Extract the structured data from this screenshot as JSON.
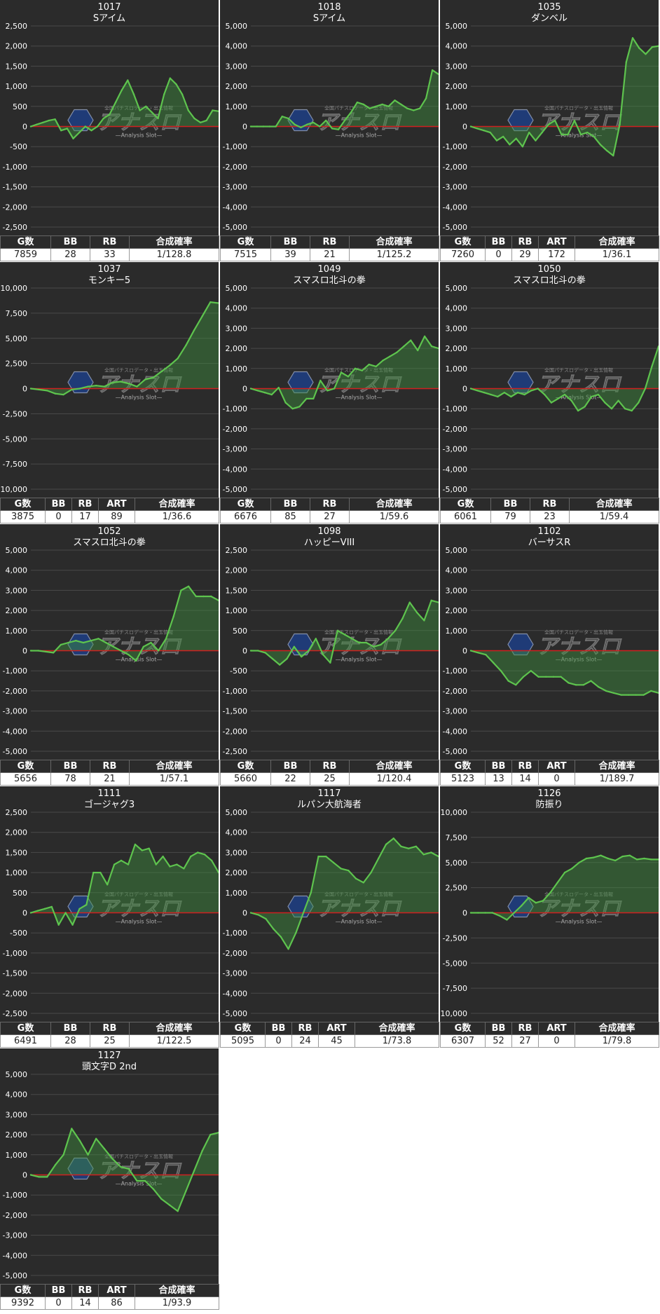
{
  "watermark": {
    "brand": "アナスロ",
    "tagline": "—Analysis Slot—",
    "caption": "全国パチスロデータ・出玉情報"
  },
  "colors": {
    "panel_bg": "#2b2b2b",
    "grid": "#4a4a4a",
    "zero_line": "#d02020",
    "series_line": "#5ec44e",
    "series_fill": "#3f8d3f"
  },
  "chart_data": [
    {
      "type": "area",
      "machine": "1017",
      "title": "Sアイム",
      "ylim": [
        -2500,
        2500
      ],
      "yticks": [
        2500,
        2000,
        1500,
        1000,
        500,
        0,
        -500,
        -1000,
        -1500,
        -2000,
        -2500
      ],
      "grid": true,
      "values": [
        0,
        50,
        100,
        150,
        180,
        -100,
        -50,
        -300,
        -150,
        0,
        -100,
        0,
        200,
        300,
        600,
        900,
        1150,
        800,
        400,
        500,
        350,
        200,
        800,
        1200,
        1050,
        800,
        400,
        200,
        100,
        150,
        400,
        380
      ],
      "stats": {
        "columns": [
          "G数",
          "BB",
          "RB",
          "合成確率"
        ],
        "values": [
          "7859",
          "28",
          "33",
          "1/128.8"
        ]
      }
    },
    {
      "type": "area",
      "machine": "1018",
      "title": "Sアイム",
      "ylim": [
        -5000,
        5000
      ],
      "yticks": [
        5000,
        4000,
        3000,
        2000,
        1000,
        0,
        -1000,
        -2000,
        -3000,
        -4000,
        -5000
      ],
      "grid": true,
      "values": [
        0,
        0,
        0,
        0,
        0,
        500,
        400,
        100,
        -50,
        100,
        200,
        0,
        300,
        -100,
        -150,
        300,
        700,
        1200,
        1100,
        900,
        1000,
        1100,
        1000,
        1300,
        1100,
        900,
        800,
        900,
        1400,
        2800,
        2600
      ],
      "stats": {
        "columns": [
          "G数",
          "BB",
          "RB",
          "合成確率"
        ],
        "values": [
          "7515",
          "39",
          "21",
          "1/125.2"
        ]
      }
    },
    {
      "type": "area",
      "machine": "1035",
      "title": "ダンベル",
      "ylim": [
        -5000,
        5000
      ],
      "yticks": [
        5000,
        4000,
        3000,
        2000,
        1000,
        0,
        -1000,
        -2000,
        -3000,
        -4000,
        -5000
      ],
      "grid": true,
      "values": [
        0,
        -100,
        -200,
        -300,
        -700,
        -500,
        -900,
        -600,
        -1000,
        -300,
        -700,
        -300,
        100,
        300,
        -400,
        -400,
        300,
        -400,
        -300,
        -500,
        -900,
        -1200,
        -1450,
        100,
        3200,
        4400,
        3900,
        3600,
        3950,
        4000
      ],
      "stats": {
        "columns": [
          "G数",
          "BB",
          "RB",
          "ART",
          "合成確率"
        ],
        "values": [
          "7260",
          "0",
          "29",
          "172",
          "1/36.1"
        ]
      }
    },
    {
      "type": "area",
      "machine": "1037",
      "title": "モンキー5",
      "ylim": [
        -10000,
        10000
      ],
      "yticks": [
        10000,
        7500,
        5000,
        2500,
        0,
        -2500,
        -5000,
        -7500,
        -10000
      ],
      "grid": true,
      "values": [
        0,
        -100,
        -200,
        -500,
        -600,
        -100,
        0,
        200,
        300,
        200,
        600,
        700,
        500,
        200,
        900,
        1100,
        1700,
        2300,
        3000,
        4300,
        5800,
        7200,
        8600,
        8500
      ],
      "stats": {
        "columns": [
          "G数",
          "BB",
          "RB",
          "ART",
          "合成確率"
        ],
        "values": [
          "3875",
          "0",
          "17",
          "89",
          "1/36.6"
        ]
      }
    },
    {
      "type": "area",
      "machine": "1049",
      "title": "スマスロ北斗の拳",
      "ylim": [
        -5000,
        5000
      ],
      "yticks": [
        5000,
        4000,
        3000,
        2000,
        1000,
        0,
        -1000,
        -2000,
        -3000,
        -4000,
        -5000
      ],
      "grid": true,
      "values": [
        0,
        -100,
        -200,
        -300,
        50,
        -700,
        -1000,
        -900,
        -500,
        -500,
        400,
        -100,
        0,
        800,
        600,
        1000,
        900,
        1200,
        1100,
        1400,
        1600,
        1800,
        2100,
        2400,
        1900,
        2600,
        2100,
        2000
      ],
      "stats": {
        "columns": [
          "G数",
          "BB",
          "RB",
          "合成確率"
        ],
        "values": [
          "6676",
          "85",
          "27",
          "1/59.6"
        ]
      }
    },
    {
      "type": "area",
      "machine": "1050",
      "title": "スマスロ北斗の拳",
      "ylim": [
        -5000,
        5000
      ],
      "yticks": [
        5000,
        4000,
        3000,
        2000,
        1000,
        0,
        -1000,
        -2000,
        -3000,
        -4000,
        -5000
      ],
      "grid": true,
      "values": [
        0,
        -100,
        -200,
        -300,
        -400,
        -200,
        -400,
        -200,
        -300,
        -100,
        0,
        -300,
        -700,
        -500,
        -300,
        -600,
        -1100,
        -900,
        -400,
        -300,
        -700,
        -1000,
        -600,
        -1000,
        -1100,
        -700,
        0,
        1100,
        2100
      ],
      "stats": {
        "columns": [
          "G数",
          "BB",
          "RB",
          "合成確率"
        ],
        "values": [
          "6061",
          "79",
          "23",
          "1/59.4"
        ]
      }
    },
    {
      "type": "area",
      "machine": "1052",
      "title": "スマスロ北斗の拳",
      "ylim": [
        -5000,
        5000
      ],
      "yticks": [
        5000,
        4000,
        3000,
        2000,
        1000,
        0,
        -1000,
        -2000,
        -3000,
        -4000,
        -5000
      ],
      "grid": true,
      "values": [
        0,
        0,
        -50,
        -100,
        300,
        400,
        500,
        400,
        500,
        600,
        400,
        200,
        0,
        -200,
        -500,
        200,
        400,
        0,
        600,
        1700,
        3000,
        3200,
        2700,
        2700,
        2700,
        2500
      ],
      "stats": {
        "columns": [
          "G数",
          "BB",
          "RB",
          "合成確率"
        ],
        "values": [
          "5656",
          "78",
          "21",
          "1/57.1"
        ]
      }
    },
    {
      "type": "area",
      "machine": "1098",
      "title": "ハッピーVIII",
      "ylim": [
        -2500,
        2500
      ],
      "yticks": [
        2500,
        2000,
        1500,
        1000,
        500,
        0,
        -500,
        -1000,
        -1500,
        -2000,
        -2500
      ],
      "grid": true,
      "values": [
        0,
        0,
        -50,
        -200,
        -350,
        -200,
        100,
        -150,
        0,
        300,
        -100,
        -300,
        500,
        400,
        300,
        200,
        200,
        100,
        150,
        300,
        500,
        800,
        1200,
        950,
        750,
        1250,
        1200
      ],
      "stats": {
        "columns": [
          "G数",
          "BB",
          "RB",
          "合成確率"
        ],
        "values": [
          "5660",
          "22",
          "25",
          "1/120.4"
        ]
      }
    },
    {
      "type": "area",
      "machine": "1102",
      "title": "バーサスR",
      "ylim": [
        -5000,
        5000
      ],
      "yticks": [
        5000,
        4000,
        3000,
        2000,
        1000,
        0,
        -1000,
        -2000,
        -3000,
        -4000,
        -5000
      ],
      "grid": true,
      "values": [
        0,
        -100,
        -200,
        -600,
        -1000,
        -1500,
        -1700,
        -1300,
        -1000,
        -1300,
        -1300,
        -1300,
        -1300,
        -1600,
        -1700,
        -1700,
        -1500,
        -1800,
        -2000,
        -2100,
        -2200,
        -2200,
        -2200,
        -2200,
        -2000,
        -2100
      ],
      "stats": {
        "columns": [
          "G数",
          "BB",
          "RB",
          "ART",
          "合成確率"
        ],
        "values": [
          "5123",
          "13",
          "14",
          "0",
          "1/189.7"
        ]
      }
    },
    {
      "type": "area",
      "machine": "1111",
      "title": "ゴージャグ3",
      "ylim": [
        -2500,
        2500
      ],
      "yticks": [
        2500,
        2000,
        1500,
        1000,
        500,
        0,
        -500,
        -1000,
        -1500,
        -2000,
        -2500
      ],
      "grid": true,
      "values": [
        0,
        50,
        100,
        150,
        -300,
        0,
        -300,
        100,
        200,
        1000,
        1000,
        700,
        1200,
        1300,
        1200,
        1700,
        1550,
        1600,
        1200,
        1400,
        1150,
        1200,
        1100,
        1400,
        1500,
        1450,
        1300,
        1000
      ],
      "stats": {
        "columns": [
          "G数",
          "BB",
          "RB",
          "合成確率"
        ],
        "values": [
          "6491",
          "28",
          "25",
          "1/122.5"
        ]
      }
    },
    {
      "type": "area",
      "machine": "1117",
      "title": "ルパン大航海者",
      "ylim": [
        -5000,
        5000
      ],
      "yticks": [
        5000,
        4000,
        3000,
        2000,
        1000,
        0,
        -1000,
        -2000,
        -3000,
        -4000,
        -5000
      ],
      "grid": true,
      "values": [
        0,
        -100,
        -300,
        -800,
        -1200,
        -1800,
        -1000,
        0,
        1000,
        2800,
        2800,
        2500,
        2200,
        2100,
        1700,
        1500,
        2000,
        2700,
        3400,
        3700,
        3300,
        3200,
        3300,
        2900,
        3000,
        2800
      ],
      "stats": {
        "columns": [
          "G数",
          "BB",
          "RB",
          "ART",
          "合成確率"
        ],
        "values": [
          "5095",
          "0",
          "24",
          "45",
          "1/73.8"
        ]
      }
    },
    {
      "type": "area",
      "machine": "1126",
      "title": "防振り",
      "ylim": [
        -10000,
        10000
      ],
      "yticks": [
        10000,
        7500,
        5000,
        2500,
        0,
        -2500,
        -5000,
        -7500,
        -10000
      ],
      "grid": true,
      "values": [
        0,
        0,
        0,
        0,
        -300,
        -700,
        0,
        700,
        1500,
        1000,
        1200,
        2000,
        3000,
        4000,
        4400,
        5000,
        5400,
        5500,
        5700,
        5400,
        5200,
        5600,
        5700,
        5300,
        5400,
        5300,
        5300
      ],
      "stats": {
        "columns": [
          "G数",
          "BB",
          "RB",
          "ART",
          "合成確率"
        ],
        "values": [
          "6307",
          "52",
          "27",
          "0",
          "1/79.8"
        ]
      }
    },
    {
      "type": "area",
      "machine": "1127",
      "title": "頭文字D 2nd",
      "ylim": [
        -5000,
        5000
      ],
      "yticks": [
        5000,
        4000,
        3000,
        2000,
        1000,
        0,
        -1000,
        -2000,
        -3000,
        -4000,
        -5000
      ],
      "grid": true,
      "values": [
        0,
        -100,
        -100,
        500,
        1000,
        2300,
        1700,
        1000,
        1800,
        1300,
        800,
        400,
        300,
        -300,
        -300,
        -700,
        -1200,
        -1500,
        -1800,
        -800,
        200,
        1200,
        2000,
        2100
      ],
      "stats": {
        "columns": [
          "G数",
          "BB",
          "RB",
          "ART",
          "合成確率"
        ],
        "values": [
          "9392",
          "0",
          "14",
          "86",
          "1/93.9"
        ]
      }
    }
  ]
}
